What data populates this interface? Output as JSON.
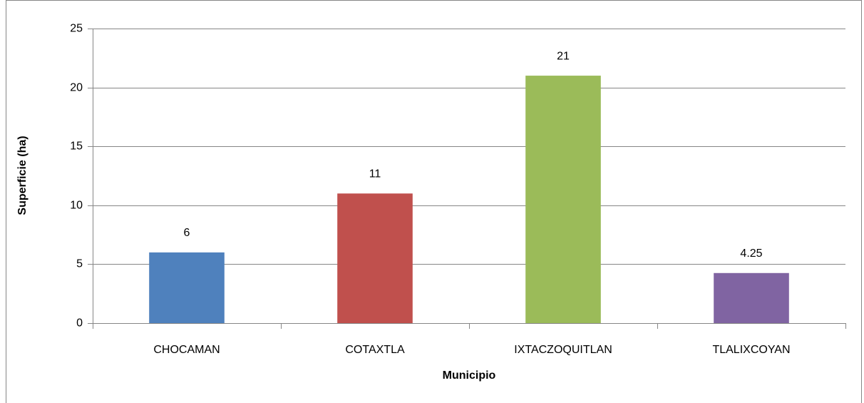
{
  "chart_data": {
    "type": "bar",
    "x_label": "Municipio",
    "y_label": "Superficie (ha)",
    "categories": [
      "CHOCAMAN",
      "COTAXTLA",
      "IXTACZOQUITLAN",
      "TLALIXCOYAN"
    ],
    "values": [
      6,
      11,
      21,
      4.25
    ],
    "colors": [
      "#4f81bd",
      "#c0504d",
      "#9bbb59",
      "#8064a2"
    ],
    "ylim": [
      0,
      25
    ],
    "yticks": [
      0,
      5,
      10,
      15,
      20,
      25
    ],
    "grid": true
  }
}
